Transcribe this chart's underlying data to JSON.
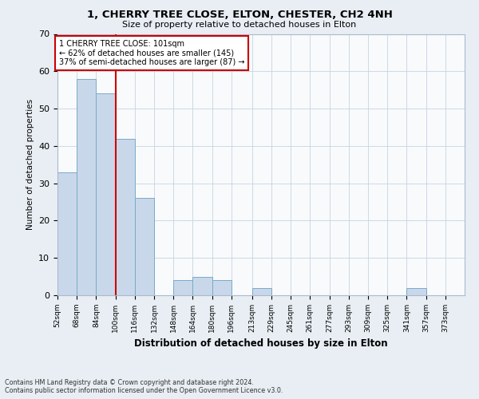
{
  "title": "1, CHERRY TREE CLOSE, ELTON, CHESTER, CH2 4NH",
  "subtitle": "Size of property relative to detached houses in Elton",
  "xlabel": "Distribution of detached houses by size in Elton",
  "ylabel": "Number of detached properties",
  "bin_edges": [
    52,
    68,
    84,
    100,
    116,
    132,
    148,
    164,
    180,
    196,
    213,
    229,
    245,
    261,
    277,
    293,
    309,
    325,
    341,
    357,
    373
  ],
  "bar_heights": [
    33,
    58,
    54,
    42,
    26,
    0,
    4,
    5,
    4,
    0,
    2,
    0,
    0,
    0,
    0,
    0,
    0,
    0,
    2,
    0
  ],
  "bar_color": "#c8d8ea",
  "bar_edge_color": "#7aaac8",
  "property_line_x": 100,
  "property_line_color": "#cc0000",
  "annotation_box_text": "1 CHERRY TREE CLOSE: 101sqm\n← 62% of detached houses are smaller (145)\n37% of semi-detached houses are larger (87) →",
  "annotation_box_color": "#cc0000",
  "ylim": [
    0,
    70
  ],
  "yticks": [
    0,
    10,
    20,
    30,
    40,
    50,
    60,
    70
  ],
  "footnote": "Contains HM Land Registry data © Crown copyright and database right 2024.\nContains public sector information licensed under the Open Government Licence v3.0.",
  "bg_color": "#e8eef4",
  "plot_bg_color": "#f8fafc",
  "grid_color": "#c8d4e0"
}
